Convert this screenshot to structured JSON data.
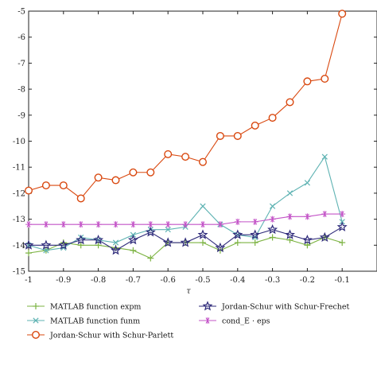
{
  "chart_data": {
    "type": "line",
    "title": "",
    "xlabel": "τ",
    "ylabel": "",
    "xlim": [
      -1,
      0
    ],
    "ylim": [
      -15,
      -5
    ],
    "xticks": [
      "-1",
      "-0.9",
      "-0.8",
      "-0.7",
      "-0.6",
      "-0.5",
      "-0.4",
      "-0.3",
      "-0.2",
      "-0.1"
    ],
    "yticks": [
      "-5",
      "-6",
      "-7",
      "-8",
      "-9",
      "-10",
      "-11",
      "-12",
      "-13",
      "-14",
      "-15"
    ],
    "grid": false,
    "legend_position": "below",
    "x": [
      -1,
      -0.95,
      -0.9,
      -0.85,
      -0.8,
      -0.75,
      -0.7,
      -0.65,
      -0.6,
      -0.55,
      -0.5,
      -0.45,
      -0.4,
      -0.35,
      -0.3,
      -0.25,
      -0.2,
      -0.15,
      -0.1
    ],
    "series": [
      {
        "name": "MATLAB function expm",
        "marker": "plus",
        "color": "#7cb342",
        "values": [
          -14.3,
          -14.2,
          -13.9,
          -14.0,
          -14.0,
          -14.1,
          -14.2,
          -14.5,
          -13.9,
          -13.9,
          -13.9,
          -14.2,
          -13.9,
          -13.9,
          -13.7,
          -13.8,
          -14.0,
          -13.7,
          -13.9
        ]
      },
      {
        "name": "MATLAB function funm",
        "marker": "x",
        "color": "#5fb3b3",
        "values": [
          -14.0,
          -14.2,
          -14.1,
          -13.7,
          -13.8,
          -13.9,
          -13.6,
          -13.4,
          -13.4,
          -13.3,
          -12.5,
          -13.2,
          -13.6,
          -13.7,
          -12.5,
          -12.0,
          -11.6,
          -10.6,
          -13.1
        ]
      },
      {
        "name": "Jordan-Schur with Schur-Parlett",
        "marker": "circle",
        "color": "#d9480f",
        "values": [
          -11.9,
          -11.7,
          -11.7,
          -12.2,
          -11.4,
          -11.5,
          -11.2,
          -11.2,
          -10.5,
          -10.6,
          -10.8,
          -9.8,
          -9.8,
          -9.4,
          -9.1,
          -8.5,
          -7.7,
          -7.6,
          -5.1
        ]
      },
      {
        "name": "Jordan-Schur with Schur-Frechet",
        "marker": "star",
        "color": "#2e2a7a",
        "values": [
          -14.0,
          -14.0,
          -14.0,
          -13.8,
          -13.8,
          -14.2,
          -13.8,
          -13.5,
          -13.9,
          -13.9,
          -13.6,
          -14.1,
          -13.6,
          -13.6,
          -13.4,
          -13.6,
          -13.8,
          -13.7,
          -13.3
        ]
      },
      {
        "name": "cond_E · eps",
        "marker": "asterisk",
        "color": "#c353c7",
        "values": [
          -13.2,
          -13.2,
          -13.2,
          -13.2,
          -13.2,
          -13.2,
          -13.2,
          -13.2,
          -13.2,
          -13.2,
          -13.2,
          -13.2,
          -13.1,
          -13.1,
          -13.0,
          -12.9,
          -12.9,
          -12.8,
          -12.8
        ]
      }
    ]
  }
}
